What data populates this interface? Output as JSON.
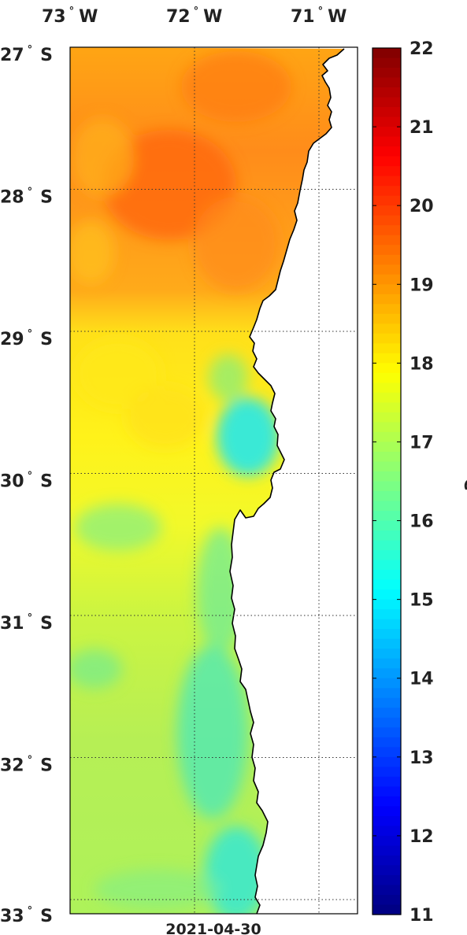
{
  "map": {
    "date": "2021-04-30",
    "longitude_labels": [
      {
        "value": -73,
        "num": "73",
        "dir": "W"
      },
      {
        "value": -72,
        "num": "72",
        "dir": "W"
      },
      {
        "value": -71,
        "num": "71",
        "dir": "W"
      }
    ],
    "latitude_labels": [
      {
        "value": -27,
        "num": "27",
        "dir": "S"
      },
      {
        "value": -28,
        "num": "28",
        "dir": "S"
      },
      {
        "value": -29,
        "num": "29",
        "dir": "S"
      },
      {
        "value": -30,
        "num": "30",
        "dir": "S"
      },
      {
        "value": -31,
        "num": "31",
        "dir": "S"
      },
      {
        "value": -32,
        "num": "32",
        "dir": "S"
      },
      {
        "value": -33,
        "num": "33",
        "dir": "S"
      }
    ],
    "degree_symbol": "°",
    "gridlines": "dotted",
    "land_color": "#ffffff",
    "coastline_color": "#000000"
  },
  "colorbar": {
    "unit": "°C",
    "min": 11,
    "max": 22,
    "ticks": [
      "22",
      "21",
      "20",
      "19",
      "18",
      "17",
      "16",
      "15",
      "14",
      "13",
      "12",
      "11"
    ],
    "colormap": "jet"
  }
}
